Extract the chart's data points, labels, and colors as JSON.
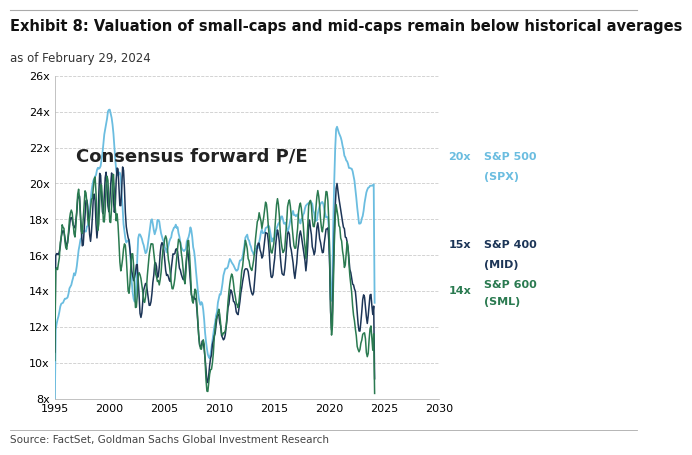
{
  "title": "Exhibit 8: Valuation of small-caps and mid-caps remain below historical averages",
  "subtitle": "as of February 29, 2024",
  "source": "Source: FactSet, Goldman Sachs Global Investment Research",
  "annotation": "Consensus forward P/E",
  "xlim": [
    1995,
    2030
  ],
  "ylim": [
    8,
    26
  ],
  "yticks": [
    8,
    10,
    12,
    14,
    16,
    18,
    20,
    22,
    24,
    26
  ],
  "xticks": [
    1995,
    2000,
    2005,
    2010,
    2015,
    2020,
    2025,
    2030
  ],
  "spx_color": "#6BBDE0",
  "mid_color": "#1C3557",
  "sml_color": "#2A7A50",
  "background_color": "#FFFFFF",
  "grid_color": "#CCCCCC",
  "title_fontsize": 10.5,
  "subtitle_fontsize": 8.5,
  "annotation_fontsize": 13,
  "source_fontsize": 7.5,
  "tick_fontsize": 8,
  "legend_fontsize": 8
}
